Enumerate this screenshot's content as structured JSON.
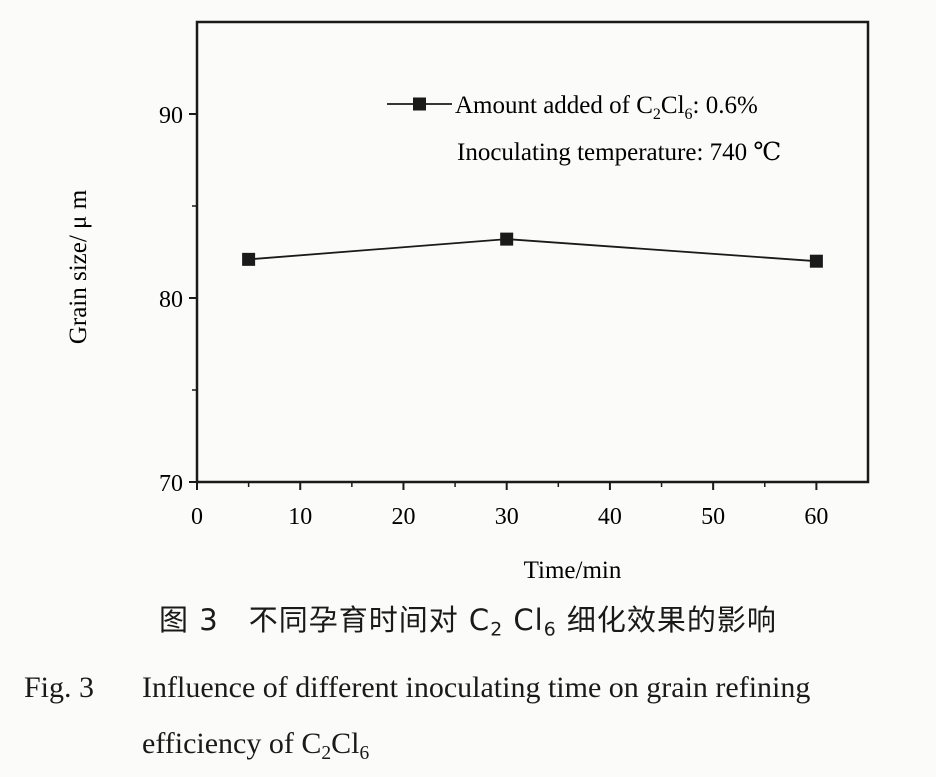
{
  "chart_data": {
    "type": "line",
    "title": "",
    "xlabel": "Time/min",
    "ylabel": "Grain size/ μ m",
    "xlim": [
      0,
      65
    ],
    "ylim": [
      70,
      95
    ],
    "x_ticks": [
      0,
      10,
      20,
      30,
      40,
      50,
      60
    ],
    "y_ticks": [
      70,
      80,
      90
    ],
    "grid": false,
    "legend_position": "top-right",
    "series": [
      {
        "name": "Amount added of C₂Cl₆: 0.6%",
        "marker": "square",
        "color": "#1a1a1a",
        "x": [
          5,
          30,
          60
        ],
        "y": [
          82.1,
          83.2,
          82.0
        ]
      }
    ],
    "annotations": [
      "Inoculating temperature: 740 ℃"
    ]
  },
  "legend": {
    "series_name_prefix": "Amount added of C",
    "series_name_sub1": "2",
    "series_name_mid": "Cl",
    "series_name_sub2": "6",
    "series_name_suffix": ": 0.6%",
    "note": "Inoculating temperature: 740 ℃"
  },
  "caption": {
    "cn_prefix": "图 3　不同孕育时间对 C",
    "cn_sub1": "2",
    "cn_mid": " Cl",
    "cn_sub2": "6",
    "cn_suffix": " 细化效果的影响",
    "en_label": "Fig. 3",
    "en_line1": "Influence of different inoculating time on grain refining",
    "en_line2_prefix": "efficiency of C",
    "en_sub1": "2",
    "en_mid": "Cl",
    "en_sub2": "6"
  }
}
